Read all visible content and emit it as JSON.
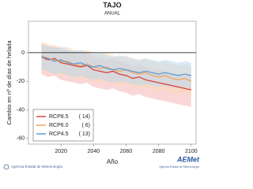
{
  "chart_data": {
    "type": "line",
    "title": "TAJO",
    "subtitle": "ANUAL",
    "y_label": "Cambio en nº de días de helada",
    "x_label": "Año",
    "x": [
      2008,
      2012,
      2016,
      2020,
      2024,
      2028,
      2032,
      2036,
      2040,
      2044,
      2048,
      2052,
      2056,
      2060,
      2064,
      2068,
      2072,
      2076,
      2080,
      2084,
      2088,
      2092,
      2096,
      2100
    ],
    "xlim": [
      2000,
      2103
    ],
    "xticks": [
      2020,
      2040,
      2060,
      2080,
      2100
    ],
    "ylim": [
      -64,
      22
    ],
    "yticks": [
      -60,
      -40,
      -20,
      0
    ],
    "reference_line": 0,
    "legend": "lower-left",
    "series": [
      {
        "name": "RCP8.5",
        "count_label": "( 14)",
        "color": "#d9473d",
        "band_color": "#f4b6b6",
        "values": [
          -3,
          -5,
          -4,
          -7,
          -8,
          -9,
          -10,
          -9,
          -12,
          -13,
          -14,
          -13,
          -15,
          -16,
          -18,
          -17,
          -19,
          -20,
          -21,
          -22,
          -23,
          -24,
          -25,
          -26
        ],
        "low": [
          -15,
          -17,
          -16,
          -19,
          -20,
          -21,
          -22,
          -21,
          -24,
          -25,
          -26,
          -25,
          -27,
          -28,
          -30,
          -29,
          -31,
          -32,
          -33,
          -34,
          -35,
          -36,
          -37,
          -38
        ],
        "high": [
          6,
          4,
          5,
          2,
          1,
          0,
          -1,
          0,
          -3,
          -4,
          -5,
          -4,
          -6,
          -7,
          -9,
          -8,
          -10,
          -11,
          -12,
          -13,
          -14,
          -15,
          -16,
          -17
        ]
      },
      {
        "name": "RCP6.0",
        "count_label": "(  6)",
        "color": "#f0a35e",
        "band_color": "#f9d8b8",
        "values": [
          -2,
          -4,
          -5,
          -6,
          -6,
          -8,
          -9,
          -8,
          -10,
          -11,
          -10,
          -12,
          -13,
          -12,
          -14,
          -15,
          -14,
          -16,
          -17,
          -16,
          -18,
          -19,
          -18,
          -20
        ],
        "low": [
          -12,
          -14,
          -15,
          -16,
          -16,
          -18,
          -19,
          -18,
          -20,
          -21,
          -20,
          -22,
          -23,
          -22,
          -24,
          -25,
          -24,
          -26,
          -27,
          -26,
          -28,
          -29,
          -28,
          -30
        ],
        "high": [
          8,
          6,
          5,
          4,
          4,
          2,
          1,
          2,
          0,
          -1,
          0,
          -2,
          -3,
          -2,
          -4,
          -5,
          -4,
          -6,
          -7,
          -6,
          -8,
          -9,
          -8,
          -10
        ]
      },
      {
        "name": "RCP4.5",
        "count_label": "( 13)",
        "color": "#5d9fd3",
        "band_color": "#bcd8ee",
        "values": [
          -3,
          -4,
          -6,
          -5,
          -7,
          -8,
          -7,
          -9,
          -10,
          -9,
          -11,
          -12,
          -11,
          -12,
          -13,
          -14,
          -13,
          -14,
          -15,
          -14,
          -15,
          -16,
          -15,
          -16
        ],
        "low": [
          -12,
          -13,
          -15,
          -14,
          -16,
          -17,
          -16,
          -18,
          -19,
          -18,
          -20,
          -21,
          -20,
          -21,
          -22,
          -23,
          -22,
          -23,
          -24,
          -23,
          -24,
          -25,
          -24,
          -25
        ],
        "high": [
          6,
          5,
          3,
          4,
          2,
          1,
          2,
          0,
          -1,
          0,
          -2,
          -3,
          -2,
          -3,
          -4,
          -5,
          -4,
          -5,
          -6,
          -5,
          -6,
          -7,
          -6,
          -7
        ]
      }
    ]
  },
  "footer": {
    "left": "Agencia Estatal de Meteorología",
    "right": "AEMet",
    "right_sub": "Agencia Estatal de Meteorología"
  }
}
